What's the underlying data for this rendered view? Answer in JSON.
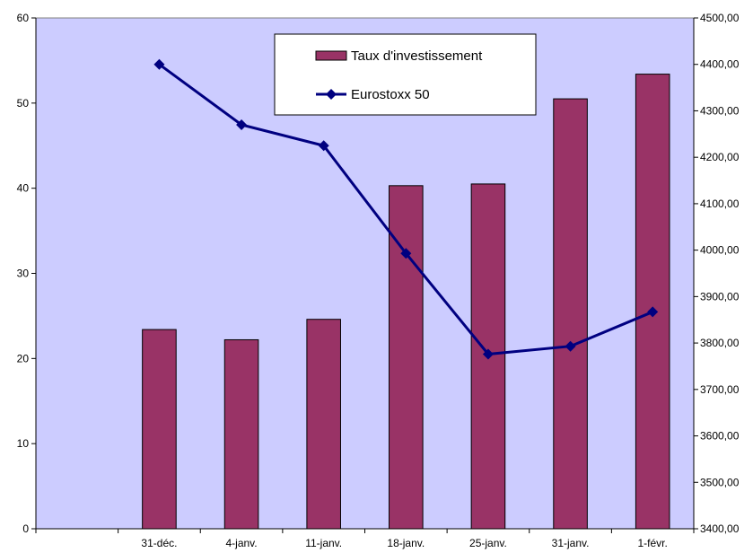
{
  "chart_data": {
    "type": "bar+line",
    "categories": [
      "",
      "31-déc.",
      "4-janv.",
      "11-janv.",
      "18-janv.",
      "25-janv.",
      "31-janv.",
      "1-févr."
    ],
    "series": [
      {
        "name": "Taux d'investissement",
        "type": "bar",
        "axis": "left",
        "color": "#993366",
        "values": [
          null,
          23.4,
          22.2,
          24.6,
          40.3,
          40.5,
          50.5,
          53.4
        ]
      },
      {
        "name": "Eurostoxx 50",
        "type": "line",
        "axis": "right",
        "color": "#000080",
        "marker": "diamond",
        "values": [
          null,
          4400,
          4270,
          4225,
          3993,
          3776,
          3793,
          3867
        ]
      }
    ],
    "y_left": {
      "min": 0,
      "max": 60,
      "step": 10,
      "tick_labels": [
        "0",
        "10",
        "20",
        "30",
        "40",
        "50",
        "60"
      ]
    },
    "y_right": {
      "min": 3400,
      "max": 4500,
      "step": 100,
      "tick_labels": [
        "3400,00",
        "3500,00",
        "3600,00",
        "3700,00",
        "3800,00",
        "3900,00",
        "4000,00",
        "4100,00",
        "4200,00",
        "4300,00",
        "4400,00",
        "4500,00"
      ]
    },
    "plot_background": "#ccccff",
    "grid": false,
    "legend_position": "top-right-inside",
    "title": "",
    "xlabel": "",
    "ylabel": ""
  }
}
